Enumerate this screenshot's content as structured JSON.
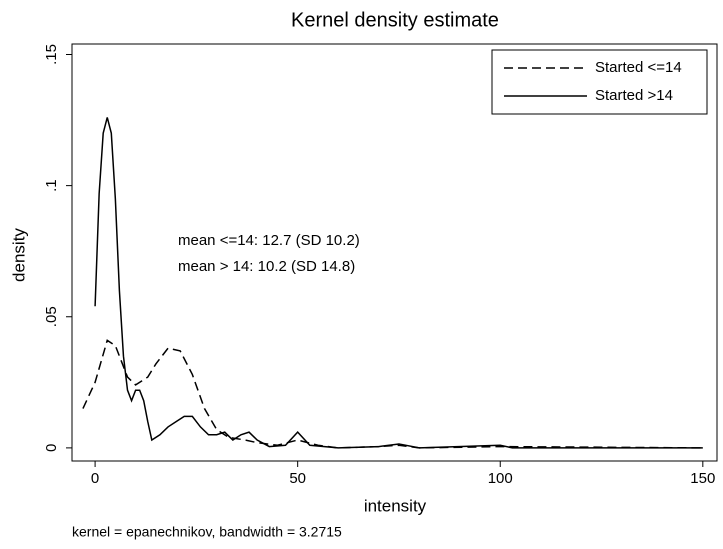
{
  "chart_data": {
    "type": "line",
    "title": "Kernel density estimate",
    "x_label": "intensity",
    "y_label": "density",
    "note": "kernel = epanechnikov, bandwidth = 3.2715",
    "annotations": [
      "mean <=14: 12.7 (SD 10.2)",
      "mean >  14: 10.2 (SD 14.8)"
    ],
    "xlim": [
      -5.7,
      153.5
    ],
    "ylim": [
      -0.005,
      0.154
    ],
    "xticks": [
      0,
      50,
      100,
      150
    ],
    "yticks": [
      0,
      {
        "value": 0.05,
        "label": ".05"
      },
      {
        "value": 0.1,
        "label": ".1"
      },
      {
        "value": 0.15,
        "label": ".15"
      }
    ],
    "legend": "top-right",
    "series": [
      {
        "name": "Started <=14",
        "color": "#000000",
        "dash": "dashed",
        "x": [
          -3,
          0,
          3,
          5,
          8,
          10,
          13,
          15,
          18,
          21,
          24,
          27,
          30,
          33,
          37,
          40,
          45,
          50,
          55,
          60,
          70,
          75,
          80,
          100,
          150
        ],
        "values": [
          0.015,
          0.025,
          0.041,
          0.039,
          0.027,
          0.024,
          0.027,
          0.032,
          0.038,
          0.037,
          0.028,
          0.015,
          0.007,
          0.004,
          0.003,
          0.002,
          0.001,
          0.003,
          0.001,
          0,
          0.0005,
          0.001,
          0,
          0.0005,
          0
        ]
      },
      {
        "name": "Started >14",
        "color": "#000000",
        "dash": "solid",
        "x": [
          0,
          1,
          2,
          3,
          4,
          5,
          6,
          7,
          8,
          9,
          10,
          11,
          12,
          13,
          14,
          16,
          18,
          20,
          22,
          24,
          26,
          28,
          30,
          32,
          34,
          36,
          38,
          40,
          43,
          47,
          50,
          53,
          60,
          70,
          75,
          80,
          100,
          103,
          150
        ],
        "values": [
          0.054,
          0.097,
          0.12,
          0.126,
          0.12,
          0.095,
          0.06,
          0.035,
          0.022,
          0.018,
          0.022,
          0.022,
          0.018,
          0.01,
          0.003,
          0.005,
          0.008,
          0.01,
          0.012,
          0.012,
          0.008,
          0.005,
          0.005,
          0.006,
          0.003,
          0.005,
          0.006,
          0.003,
          0.0005,
          0.001,
          0.006,
          0.001,
          0,
          0.0005,
          0.0015,
          0,
          0.001,
          0,
          0
        ]
      }
    ]
  }
}
